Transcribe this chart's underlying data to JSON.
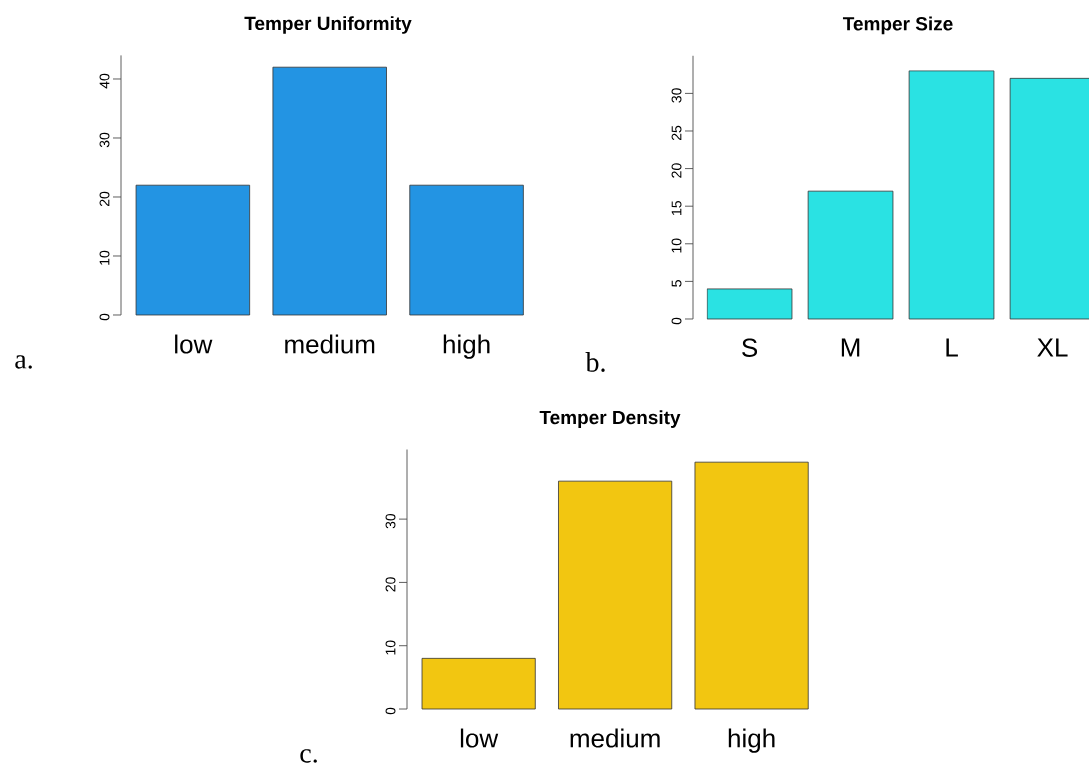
{
  "chart_data": [
    {
      "type": "bar",
      "title": "Temper Uniformity",
      "categories": [
        "low",
        "medium",
        "high"
      ],
      "values": [
        22,
        42,
        22
      ],
      "color": "#2394e3",
      "ylim": [
        0,
        44
      ],
      "yticks": [
        0,
        10,
        20,
        30,
        40
      ],
      "annotations": [
        "a."
      ]
    },
    {
      "type": "bar",
      "title": "Temper Size",
      "categories": [
        "S",
        "M",
        "L",
        "XL"
      ],
      "values": [
        4,
        17,
        33,
        32
      ],
      "color": "#2ae2e3",
      "ylim": [
        0,
        35
      ],
      "yticks": [
        0,
        5,
        10,
        15,
        20,
        25,
        30
      ],
      "annotations": [
        "b."
      ]
    },
    {
      "type": "bar",
      "title": "Temper Density",
      "categories": [
        "low",
        "medium",
        "high"
      ],
      "values": [
        8,
        36,
        39
      ],
      "color": "#f2c611",
      "ylim": [
        0,
        41
      ],
      "yticks": [
        0,
        10,
        20,
        30
      ],
      "annotations": [
        "c."
      ]
    }
  ]
}
